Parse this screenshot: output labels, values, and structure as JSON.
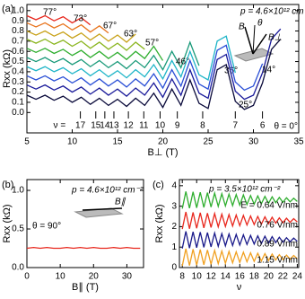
{
  "chart_data": [
    {
      "type": "line",
      "panel": "(a)",
      "xlabel": "B⊥ (T)",
      "ylabel": "Rxx (kΩ)",
      "x": [
        5,
        6,
        7,
        8,
        9,
        10,
        11,
        12,
        13,
        14,
        15,
        16,
        17,
        18,
        19,
        20,
        21,
        22,
        23,
        24,
        25,
        26,
        27,
        28,
        29,
        30,
        31,
        32,
        33
      ],
      "xlim": [
        5,
        35
      ],
      "xticks": [
        5,
        10,
        15,
        20,
        25,
        30,
        35
      ],
      "ylim": [
        -0.2,
        1.06
      ],
      "yticks": [
        {
          "value": 0,
          "label": "0.0"
        },
        0.1,
        0.2,
        0.3,
        0.4,
        0.5,
        0.6,
        0.7,
        0.8,
        0.9,
        {
          "value": 1,
          "label": "1.0"
        }
      ],
      "series": [
        {
          "name": "77°",
          "color": "#e8281e",
          "values": [
            0.95,
            0.91,
            0.95,
            0.9,
            0.94,
            0.88,
            0.93,
            0.86,
            null,
            null,
            null,
            null,
            null,
            null,
            null,
            null,
            null,
            null,
            null,
            null,
            null,
            null,
            null,
            null,
            null,
            null,
            null,
            null,
            null
          ]
        },
        {
          "name": "73°",
          "color": "#e8731c",
          "values": [
            0.88,
            0.84,
            0.88,
            0.83,
            0.87,
            0.81,
            0.86,
            0.79,
            0.85,
            0.78,
            null,
            null,
            null,
            null,
            null,
            null,
            null,
            null,
            null,
            null,
            null,
            null,
            null,
            null,
            null,
            null,
            null,
            null,
            null
          ]
        },
        {
          "name": "67°",
          "color": "#c8a21a",
          "values": [
            0.8,
            0.76,
            0.8,
            0.75,
            0.79,
            0.73,
            0.78,
            0.71,
            0.77,
            0.7,
            0.76,
            0.69,
            0.77,
            null,
            null,
            null,
            null,
            null,
            null,
            null,
            null,
            null,
            null,
            null,
            null,
            null,
            null,
            null,
            null
          ]
        },
        {
          "name": "63°",
          "color": "#8ab51e",
          "values": [
            0.72,
            0.68,
            0.72,
            0.67,
            0.71,
            0.65,
            0.7,
            0.63,
            0.69,
            0.62,
            0.68,
            0.61,
            0.69,
            0.62,
            null,
            null,
            null,
            null,
            null,
            null,
            null,
            null,
            null,
            null,
            null,
            null,
            null,
            null,
            null
          ]
        },
        {
          "name": "57°",
          "color": "#2fae2f",
          "values": [
            0.63,
            0.59,
            0.63,
            0.58,
            0.62,
            0.56,
            0.61,
            0.54,
            0.6,
            0.53,
            0.59,
            0.52,
            0.6,
            0.53,
            0.65,
            0.51,
            null,
            null,
            null,
            null,
            null,
            null,
            null,
            null,
            null,
            null,
            null,
            null,
            null
          ]
        },
        {
          "name": "46°",
          "color": "#1a9a7a",
          "values": [
            0.54,
            0.5,
            0.54,
            0.49,
            0.53,
            0.47,
            0.52,
            0.45,
            0.51,
            0.44,
            0.5,
            0.43,
            0.51,
            0.44,
            0.56,
            0.42,
            0.6,
            0.44,
            0.69,
            0.46,
            null,
            null,
            null,
            null,
            null,
            null,
            null,
            null,
            null
          ]
        },
        {
          "name": "36°",
          "color": "#1fb5c8",
          "values": [
            0.45,
            0.41,
            0.45,
            0.4,
            0.44,
            0.38,
            0.43,
            0.36,
            0.42,
            0.35,
            0.41,
            0.34,
            0.42,
            0.35,
            0.47,
            0.33,
            0.51,
            0.35,
            0.6,
            0.37,
            0.32,
            0.7,
            0.75,
            0.39,
            null,
            null,
            null,
            null,
            null
          ]
        },
        {
          "name": "25°",
          "color": "#2a4fd6",
          "values": [
            0.36,
            0.32,
            0.36,
            0.31,
            0.35,
            0.29,
            0.34,
            0.27,
            0.33,
            0.26,
            0.32,
            0.25,
            0.33,
            0.26,
            0.38,
            0.24,
            0.42,
            0.26,
            0.51,
            0.28,
            0.23,
            0.61,
            0.66,
            0.3,
            0.22,
            0.26,
            0.48,
            null,
            null
          ]
        },
        {
          "name": "14°",
          "color": "#1a1a9a",
          "values": [
            0.27,
            0.23,
            0.27,
            0.22,
            0.26,
            0.2,
            0.25,
            0.18,
            0.24,
            0.17,
            0.23,
            0.16,
            0.24,
            0.17,
            0.29,
            0.15,
            0.33,
            0.17,
            0.42,
            0.19,
            0.14,
            0.52,
            0.57,
            0.21,
            0.13,
            0.17,
            0.39,
            0.72,
            0.82
          ]
        },
        {
          "name": "θ = 0°",
          "color": "#0a0a3a",
          "values": [
            0.17,
            0.13,
            0.17,
            0.12,
            0.16,
            0.1,
            0.15,
            0.08,
            0.14,
            0.07,
            0.13,
            0.06,
            0.14,
            0.07,
            0.19,
            0.05,
            0.23,
            0.07,
            0.32,
            0.09,
            0.04,
            0.42,
            0.47,
            0.11,
            0.03,
            0.07,
            0.29,
            0.62,
            0.72
          ]
        }
      ],
      "annotations": [
        "p = 4.6×10¹² cm⁻²",
        "B",
        "θ",
        "B⊥"
      ],
      "nu_label": "ν =",
      "nu_labels": [
        17,
        15,
        14,
        13,
        12,
        11,
        10,
        9,
        8,
        7,
        6
      ]
    },
    {
      "type": "line",
      "panel": "(b)",
      "xlabel": "B∥ (T)",
      "ylabel": "Rxx (kΩ)",
      "x": [
        0,
        2,
        4,
        6,
        8,
        10,
        12,
        14,
        16,
        18,
        20,
        22,
        24,
        26,
        28,
        30,
        32,
        34
      ],
      "xlim": [
        0,
        35
      ],
      "xticks": [
        0,
        10,
        20,
        30
      ],
      "ylim": [
        0,
        1.14
      ],
      "yticks": [
        {
          "value": 0,
          "label": "0.0"
        },
        0.5,
        {
          "value": 1,
          "label": "1.0"
        }
      ],
      "series": [
        {
          "name": "θ = 90°",
          "color": "#e8281e",
          "values": [
            0.25,
            0.26,
            0.25,
            0.26,
            0.25,
            0.25,
            0.26,
            0.25,
            0.26,
            0.25,
            0.26,
            0.25,
            0.25,
            0.26,
            0.25,
            0.26,
            0.25,
            0.25
          ]
        }
      ],
      "annotations": [
        "p = 4.6×10¹² cm⁻²",
        "B∥"
      ]
    },
    {
      "type": "line",
      "panel": "(c)",
      "xlabel": "ν",
      "ylabel": "Rxx (kΩ)",
      "x": [
        8,
        8.5,
        9,
        9.5,
        10,
        10.5,
        11,
        11.5,
        12,
        12.5,
        13,
        13.5,
        14,
        14.5,
        15,
        15.5,
        16,
        16.5,
        17,
        17.5,
        18,
        18.5,
        19,
        19.5,
        20,
        20.5,
        21,
        21.5,
        22,
        22.5,
        23,
        23.5,
        24
      ],
      "xlim": [
        7.6,
        24.2
      ],
      "xticks": [
        8,
        10,
        12,
        14,
        16,
        18,
        20,
        22,
        24
      ],
      "ylim": [
        0,
        4.3
      ],
      "yticks": [
        0,
        1,
        2,
        3,
        4
      ],
      "series": [
        {
          "name": "E = 0.64 V/nm",
          "color": "#2fae2f",
          "values": [
            2.88,
            3.72,
            2.9,
            3.7,
            2.92,
            3.68,
            2.94,
            3.66,
            2.96,
            3.64,
            2.99,
            3.61,
            3.01,
            3.59,
            3.03,
            3.57,
            3.05,
            3.55,
            3.08,
            3.52,
            3.1,
            3.5,
            3.12,
            3.48,
            3.14,
            3.46,
            3.17,
            3.43,
            3.19,
            3.41,
            3.21,
            3.39,
            3.23
          ]
        },
        {
          "name": "0.76 V/nm",
          "color": "#e8281e",
          "values": [
            1.88,
            2.72,
            1.9,
            2.7,
            1.92,
            2.68,
            1.94,
            2.66,
            1.96,
            2.64,
            1.99,
            2.61,
            2.01,
            2.59,
            2.03,
            2.57,
            2.05,
            2.55,
            2.08,
            2.52,
            2.1,
            2.5,
            2.12,
            2.48,
            2.14,
            2.46,
            2.17,
            2.43,
            2.19,
            2.41,
            2.21,
            2.39,
            2.23
          ]
        },
        {
          "name": "0.89 V/nm",
          "color": "#1a1a8a",
          "values": [
            0.93,
            1.77,
            0.95,
            1.75,
            0.97,
            1.73,
            0.99,
            1.71,
            1.01,
            1.69,
            1.04,
            1.66,
            1.06,
            1.64,
            1.08,
            1.62,
            1.1,
            1.6,
            1.13,
            1.57,
            1.15,
            1.55,
            1.17,
            1.53,
            1.19,
            1.51,
            1.22,
            1.48,
            1.24,
            1.46,
            1.26,
            1.44,
            1.28
          ]
        },
        {
          "name": "1.15 V/nm",
          "color": "#f0a020",
          "values": [
            0.08,
            0.92,
            0.1,
            0.9,
            0.12,
            0.88,
            0.14,
            0.86,
            0.16,
            0.84,
            0.19,
            0.81,
            0.21,
            0.79,
            0.23,
            0.77,
            0.25,
            0.75,
            0.28,
            0.72,
            0.3,
            0.7,
            0.32,
            0.68,
            0.34,
            0.66,
            0.37,
            0.63,
            0.39,
            0.61,
            0.41,
            0.59,
            0.43
          ]
        }
      ],
      "annotations": [
        "p = 3.5×10¹² cm⁻²"
      ]
    }
  ]
}
